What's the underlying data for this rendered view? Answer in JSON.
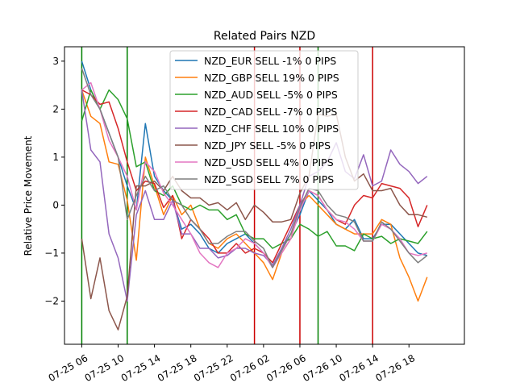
{
  "chart_data": {
    "type": "line",
    "title": "Related Pairs NZD",
    "xlabel": "",
    "ylabel": "Relative Price Movement",
    "xlim": [
      -1.9,
      42.1
    ],
    "ylim": [
      -2.9,
      3.3
    ],
    "grid": false,
    "legend_position": "top-center",
    "x_ticks": [
      {
        "x": 0,
        "label": "07-25 06"
      },
      {
        "x": 4,
        "label": "07-25 10"
      },
      {
        "x": 8,
        "label": "07-25 14"
      },
      {
        "x": 12,
        "label": "07-25 18"
      },
      {
        "x": 16,
        "label": "07-25 22"
      },
      {
        "x": 20,
        "label": "07-26 02"
      },
      {
        "x": 24,
        "label": "07-26 06"
      },
      {
        "x": 28,
        "label": "07-26 10"
      },
      {
        "x": 32,
        "label": "07-26 14"
      },
      {
        "x": 36,
        "label": "07-26 18"
      }
    ],
    "y_ticks": [
      -2,
      -1,
      0,
      1,
      2,
      3
    ],
    "vertical_lines": [
      {
        "x": 0,
        "color": "#008000"
      },
      {
        "x": 5,
        "color": "#008000"
      },
      {
        "x": 19,
        "color": "#cc0000"
      },
      {
        "x": 24,
        "color": "#cc0000"
      },
      {
        "x": 26,
        "color": "#008000"
      },
      {
        "x": 32,
        "color": "#cc0000"
      }
    ],
    "x": [
      0,
      1,
      2,
      3,
      4,
      5,
      6,
      7,
      8,
      9,
      10,
      11,
      12,
      13,
      14,
      15,
      16,
      17,
      18,
      19,
      20,
      21,
      22,
      23,
      24,
      25,
      26,
      27,
      28,
      29,
      30,
      31,
      32,
      33,
      34,
      35,
      36,
      37,
      38
    ],
    "series": [
      {
        "name": "NZD_EUR SELL -1% 0 PIPS",
        "color": "#1f77b4",
        "values": [
          3.0,
          2.4,
          2.0,
          1.5,
          1.0,
          0.4,
          -0.1,
          1.7,
          0.6,
          0.3,
          0.1,
          -0.5,
          -0.4,
          -0.6,
          -0.9,
          -1.0,
          -0.8,
          -0.7,
          -0.6,
          -0.8,
          -1.0,
          -1.3,
          -0.9,
          -0.6,
          -0.2,
          0.3,
          0.1,
          -0.1,
          -0.4,
          -0.5,
          -0.3,
          -0.7,
          -0.7,
          -0.4,
          -0.4,
          -0.6,
          -0.8,
          -1.0,
          -1.05
        ]
      },
      {
        "name": "NZD_GBP SELL 19% 0 PIPS",
        "color": "#ff7f0e",
        "values": [
          2.4,
          1.85,
          1.7,
          0.9,
          0.85,
          0.1,
          -1.15,
          1.0,
          0.4,
          -0.2,
          0.2,
          -0.2,
          0.0,
          -0.5,
          -0.8,
          -0.9,
          -0.7,
          -0.6,
          -0.8,
          -1.0,
          -1.2,
          -1.55,
          -1.0,
          -0.7,
          0.0,
          0.2,
          0.0,
          -0.2,
          -0.4,
          -0.5,
          -0.6,
          -0.6,
          -0.6,
          -0.3,
          -0.4,
          -1.1,
          -1.5,
          -2.0,
          -1.5
        ]
      },
      {
        "name": "NZD_AUD SELL -5% 0 PIPS",
        "color": "#2ca02c",
        "values": [
          1.75,
          2.4,
          2.0,
          2.4,
          2.2,
          1.8,
          0.8,
          0.9,
          0.3,
          0.2,
          0.4,
          0.0,
          -0.1,
          0.0,
          -0.1,
          -0.1,
          -0.3,
          -0.2,
          -0.6,
          -0.7,
          -0.7,
          -0.9,
          -0.8,
          -0.7,
          -0.4,
          -0.5,
          -0.65,
          -0.55,
          -0.85,
          -0.85,
          -0.95,
          -0.6,
          -0.7,
          -0.65,
          -0.8,
          -0.7,
          -0.75,
          -0.8,
          -0.55
        ]
      },
      {
        "name": "NZD_CAD SELL -7% 0 PIPS",
        "color": "#d62728",
        "values": [
          2.4,
          2.3,
          2.1,
          2.15,
          1.6,
          0.9,
          0.3,
          0.5,
          0.45,
          -0.05,
          0.2,
          -0.7,
          -0.3,
          -0.5,
          -0.7,
          -1.0,
          -1.0,
          -0.8,
          -1.0,
          -0.9,
          -1.0,
          -1.2,
          -0.8,
          -0.4,
          0.0,
          0.3,
          0.2,
          -0.1,
          -0.3,
          -0.4,
          0.0,
          0.2,
          0.15,
          0.45,
          0.4,
          0.35,
          0.15,
          -0.45,
          0.0
        ]
      },
      {
        "name": "NZD_CHF SELL 10% 0 PIPS",
        "color": "#9467bd",
        "values": [
          2.4,
          1.15,
          0.9,
          -0.6,
          -1.1,
          -2.0,
          -0.2,
          0.3,
          -0.3,
          -0.3,
          0.1,
          -0.6,
          -0.6,
          -0.9,
          -0.9,
          -1.1,
          -1.05,
          -0.9,
          -0.9,
          -1.0,
          -1.05,
          -1.25,
          -0.9,
          -0.5,
          0.0,
          0.6,
          0.7,
          0.9,
          1.3,
          0.7,
          0.55,
          1.05,
          0.4,
          0.5,
          1.15,
          0.85,
          0.7,
          0.45,
          0.6
        ]
      },
      {
        "name": "NZD_JPY SELL -5% 0 PIPS",
        "color": "#8c564b",
        "values": [
          -0.7,
          -1.95,
          -1.1,
          -2.2,
          -2.6,
          -1.9,
          0.4,
          0.4,
          0.5,
          0.3,
          0.6,
          0.3,
          0.15,
          0.15,
          0.0,
          0.05,
          -0.1,
          0.05,
          -0.3,
          0.0,
          -0.15,
          -0.35,
          -0.35,
          -0.3,
          0.25,
          0.6,
          1.9,
          1.85,
          1.9,
          1.0,
          0.5,
          0.65,
          0.3,
          0.3,
          0.35,
          0.0,
          -0.2,
          -0.2,
          -0.25
        ]
      },
      {
        "name": "NZD_USD SELL 4% 0 PIPS",
        "color": "#e377c2",
        "values": [
          2.4,
          2.55,
          2.0,
          1.35,
          1.0,
          0.6,
          -0.1,
          0.9,
          0.7,
          0.25,
          0.0,
          -0.3,
          -0.6,
          -1.0,
          -1.2,
          -1.3,
          -1.0,
          -0.9,
          -0.7,
          -0.8,
          -1.0,
          -1.3,
          -1.0,
          -0.7,
          -0.1,
          0.3,
          0.2,
          -0.1,
          -0.3,
          -0.35,
          -0.5,
          -0.75,
          -0.75,
          -0.4,
          -0.5,
          -0.7,
          -1.0,
          -1.05,
          -1.0
        ]
      },
      {
        "name": "NZD_SGD SELL 7% 0 PIPS",
        "color": "#7f7f7f",
        "values": [
          2.85,
          2.3,
          2.0,
          1.5,
          1.0,
          -0.3,
          0.2,
          0.6,
          0.3,
          0.4,
          0.1,
          0.0,
          -0.3,
          -0.5,
          -0.8,
          -0.8,
          -0.65,
          -0.55,
          -0.55,
          -0.75,
          -0.9,
          -1.3,
          -0.95,
          -0.6,
          -0.05,
          0.35,
          0.3,
          0.0,
          -0.2,
          -0.25,
          -0.35,
          -0.75,
          -0.75,
          -0.35,
          -0.5,
          -0.75,
          -1.0,
          -1.2,
          -1.05
        ]
      }
    ]
  }
}
